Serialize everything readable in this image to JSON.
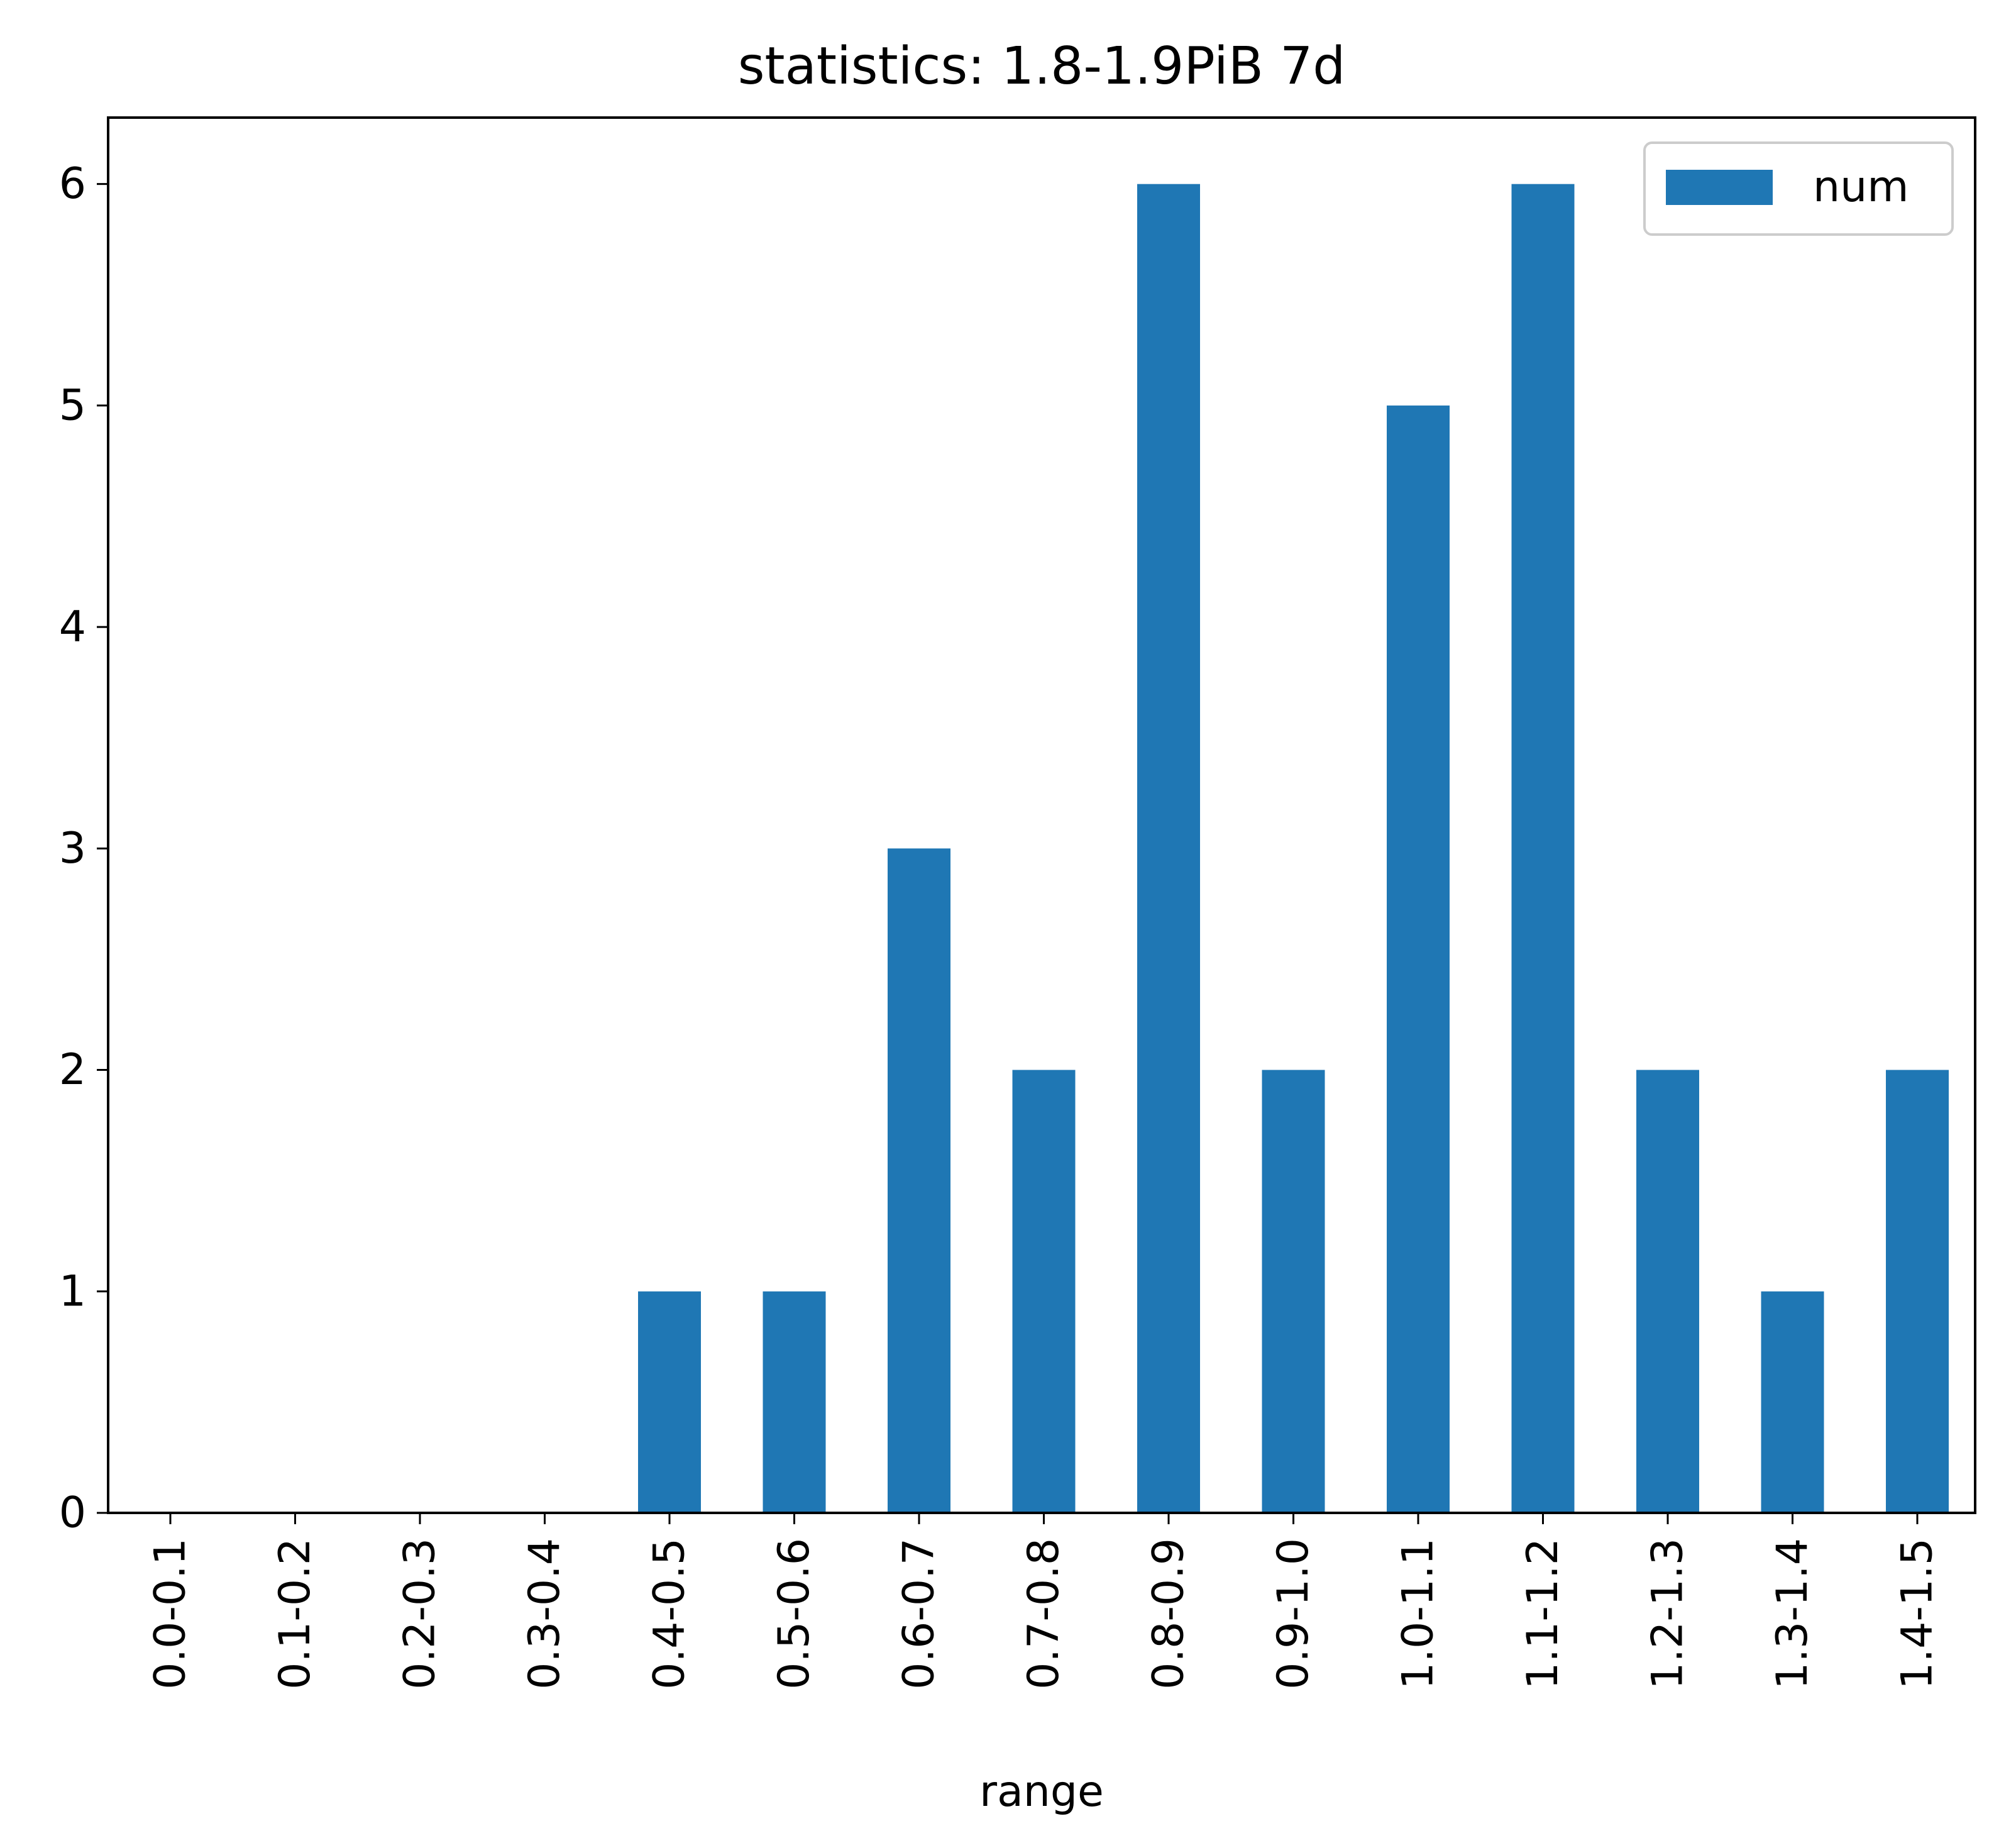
{
  "chart_data": {
    "type": "bar",
    "title": "statistics: 1.8-1.9PiB 7d",
    "xlabel": "range",
    "ylabel": "",
    "categories": [
      "0.0-0.1",
      "0.1-0.2",
      "0.2-0.3",
      "0.3-0.4",
      "0.4-0.5",
      "0.5-0.6",
      "0.6-0.7",
      "0.7-0.8",
      "0.8-0.9",
      "0.9-1.0",
      "1.0-1.1",
      "1.1-1.2",
      "1.2-1.3",
      "1.3-1.4",
      "1.4-1.5"
    ],
    "series": [
      {
        "name": "num",
        "values": [
          0,
          0,
          0,
          0,
          1,
          1,
          3,
          2,
          6,
          2,
          5,
          6,
          2,
          1,
          2
        ],
        "color": "#1f77b4"
      }
    ],
    "ylim": [
      0,
      6.3
    ],
    "yticks": [
      0,
      1,
      2,
      3,
      4,
      5,
      6
    ],
    "grid": false,
    "legend": {
      "placement": "top-right"
    }
  }
}
